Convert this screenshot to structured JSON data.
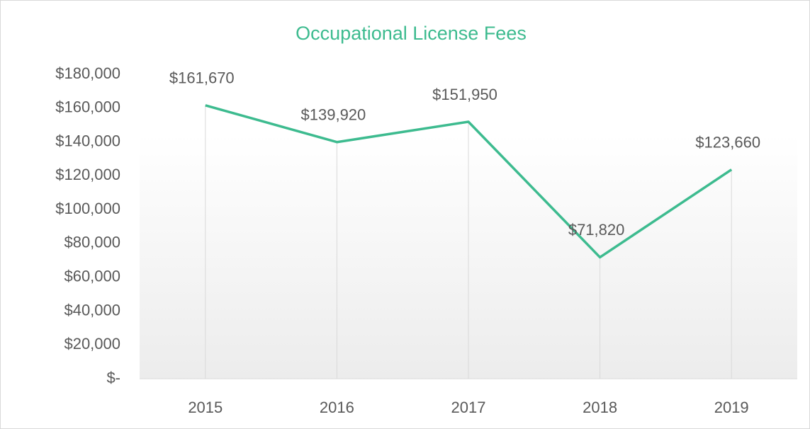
{
  "chart_data": {
    "type": "line",
    "title": "Occupational License Fees",
    "categories": [
      "2015",
      "2016",
      "2017",
      "2018",
      "2019"
    ],
    "series": [
      {
        "name": "Occupational License Fees",
        "color": "#3dbb8f",
        "values": [
          161670,
          139920,
          151950,
          71820,
          123660
        ],
        "value_labels": [
          "$161,670",
          "$139,920",
          "$151,950",
          "$71,820",
          "$123,660"
        ]
      }
    ],
    "ylim": [
      0,
      180000
    ],
    "yticks": [
      {
        "value": 0,
        "label": "$-"
      },
      {
        "value": 20000,
        "label": "$20,000"
      },
      {
        "value": 40000,
        "label": "$40,000"
      },
      {
        "value": 60000,
        "label": "$60,000"
      },
      {
        "value": 80000,
        "label": "$80,000"
      },
      {
        "value": 100000,
        "label": "$100,000"
      },
      {
        "value": 120000,
        "label": "$120,000"
      },
      {
        "value": 140000,
        "label": "$140,000"
      },
      {
        "value": 160000,
        "label": "$160,000"
      },
      {
        "value": 180000,
        "label": "$180,000"
      }
    ],
    "drop_lines": true
  }
}
